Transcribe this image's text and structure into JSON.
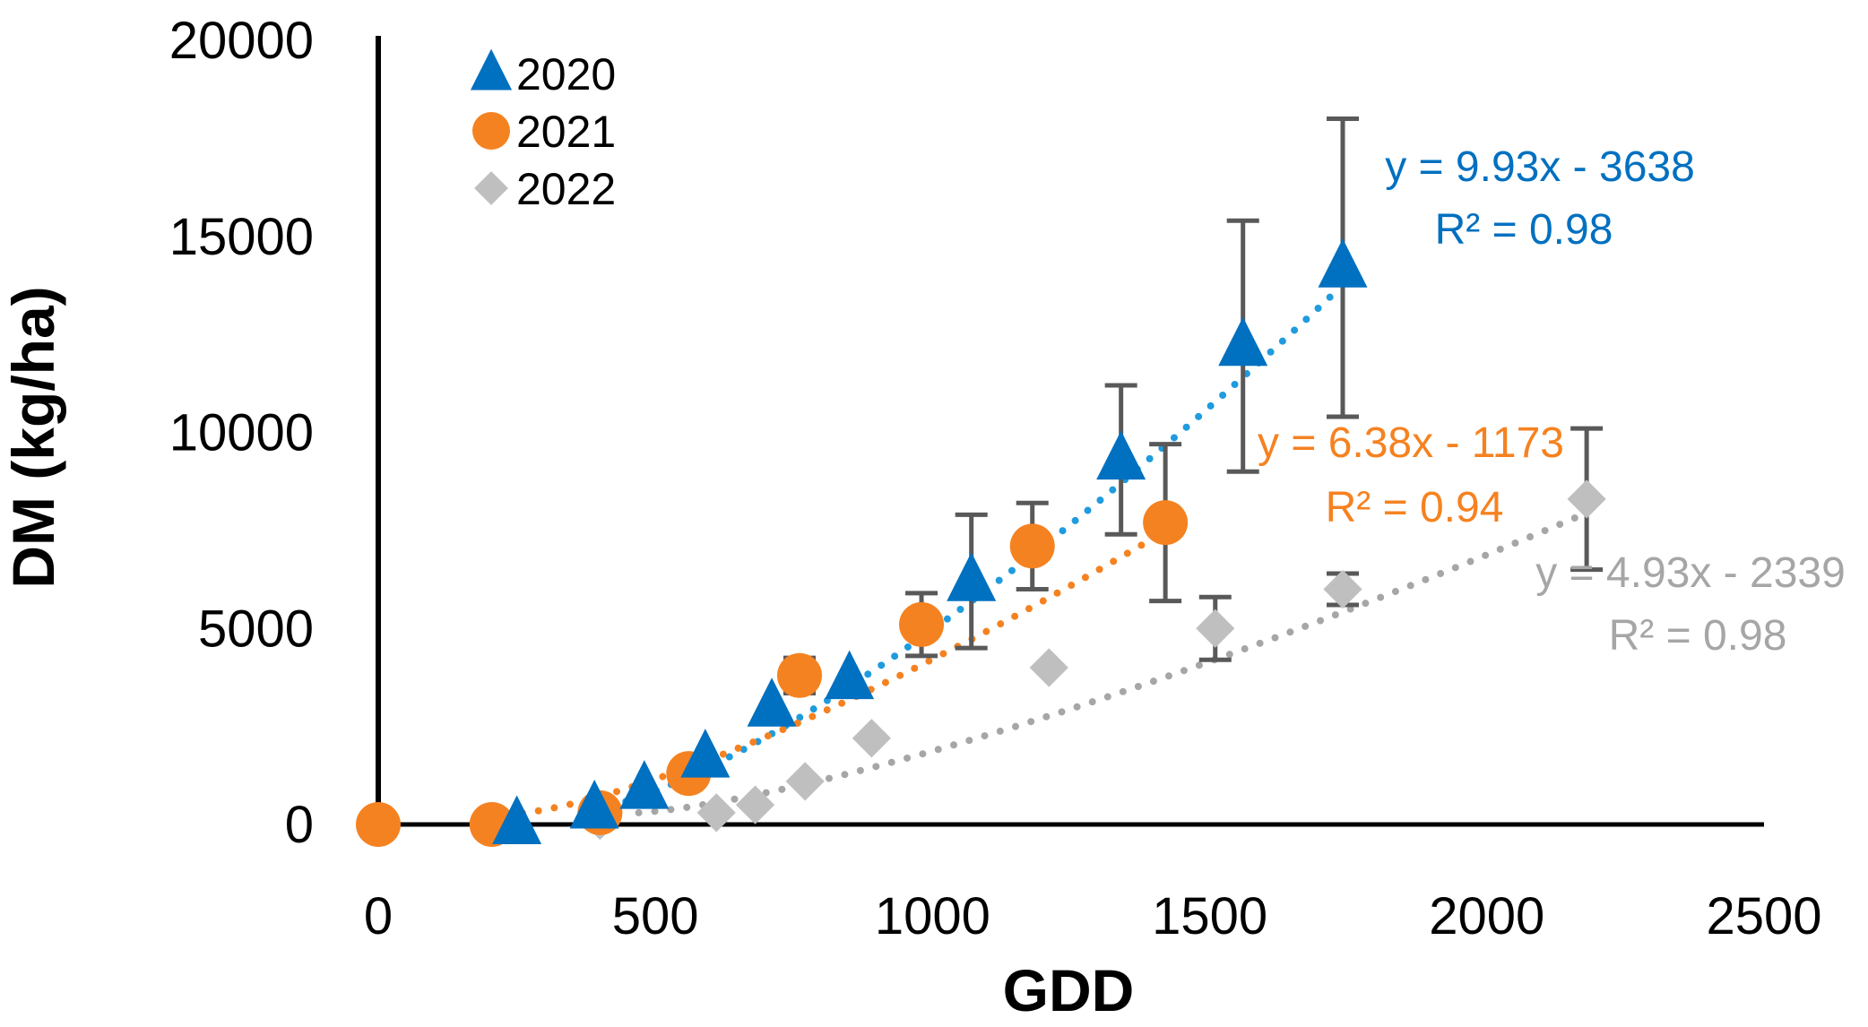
{
  "chart_data": {
    "type": "scatter",
    "title": "",
    "xlabel": "GDD",
    "ylabel": "DM (kg/ha)",
    "xlim": [
      0,
      2500
    ],
    "ylim": [
      0,
      20000
    ],
    "xticks": [
      {
        "value": 0,
        "label": "0"
      },
      {
        "value": 500,
        "label": "500"
      },
      {
        "value": 1000,
        "label": "1000"
      },
      {
        "value": 1500,
        "label": "1500"
      },
      {
        "value": 2000,
        "label": "2000"
      },
      {
        "value": 2500,
        "label": "2500"
      }
    ],
    "yticks": [
      {
        "value": 0,
        "label": "0"
      },
      {
        "value": 5000,
        "label": "5000"
      },
      {
        "value": 10000,
        "label": "10000"
      },
      {
        "value": 15000,
        "label": "15000"
      },
      {
        "value": 20000,
        "label": "20000"
      }
    ],
    "grid": false,
    "legend_position": "top-left",
    "series": [
      {
        "name": "2020",
        "marker": "triangle",
        "color": "#0070C0",
        "trend_color": "#1F9BDE",
        "points": [
          {
            "x": 250,
            "y": 0
          },
          {
            "x": 390,
            "y": 400
          },
          {
            "x": 480,
            "y": 900
          },
          {
            "x": 590,
            "y": 1700
          },
          {
            "x": 710,
            "y": 3000
          },
          {
            "x": 850,
            "y": 3700
          },
          {
            "x": 1070,
            "y": 6200,
            "err": 1700
          },
          {
            "x": 1340,
            "y": 9300,
            "err": 1900
          },
          {
            "x": 1560,
            "y": 12200,
            "err": 3200
          },
          {
            "x": 1740,
            "y": 14200,
            "err": 3800
          }
        ],
        "trend": {
          "x_from": 390,
          "x_to": 1720,
          "equation": "y = 9.93x - 3638",
          "r2": "R² = 0.98"
        }
      },
      {
        "name": "2021",
        "marker": "circle",
        "color": "#F58220",
        "trend_color": "#F58220",
        "points": [
          {
            "x": 0,
            "y": 0
          },
          {
            "x": 205,
            "y": 0
          },
          {
            "x": 400,
            "y": 300
          },
          {
            "x": 560,
            "y": 1300
          },
          {
            "x": 760,
            "y": 3800,
            "err": 450
          },
          {
            "x": 980,
            "y": 5100,
            "err": 800
          },
          {
            "x": 1180,
            "y": 7100,
            "err": 1100
          },
          {
            "x": 1420,
            "y": 7700,
            "err": 2000
          }
        ],
        "trend": {
          "x_from": 260,
          "x_to": 1400,
          "equation": "y = 6.38x - 1173",
          "r2": "R² = 0.94"
        }
      },
      {
        "name": "2022",
        "marker": "diamond",
        "color": "#BFBFBF",
        "trend_color": "#A6A6A6",
        "points": [
          {
            "x": 400,
            "y": 100
          },
          {
            "x": 610,
            "y": 300
          },
          {
            "x": 680,
            "y": 500
          },
          {
            "x": 770,
            "y": 1100
          },
          {
            "x": 890,
            "y": 2200
          },
          {
            "x": 1210,
            "y": 4000
          },
          {
            "x": 1510,
            "y": 5000,
            "err": 800
          },
          {
            "x": 1740,
            "y": 6000,
            "err": 400
          },
          {
            "x": 2180,
            "y": 8300,
            "err": 1800
          }
        ],
        "trend": {
          "x_from": 470,
          "x_to": 2170,
          "equation": "y = 4.93x - 2339",
          "r2": "R² = 0.98"
        }
      }
    ]
  }
}
